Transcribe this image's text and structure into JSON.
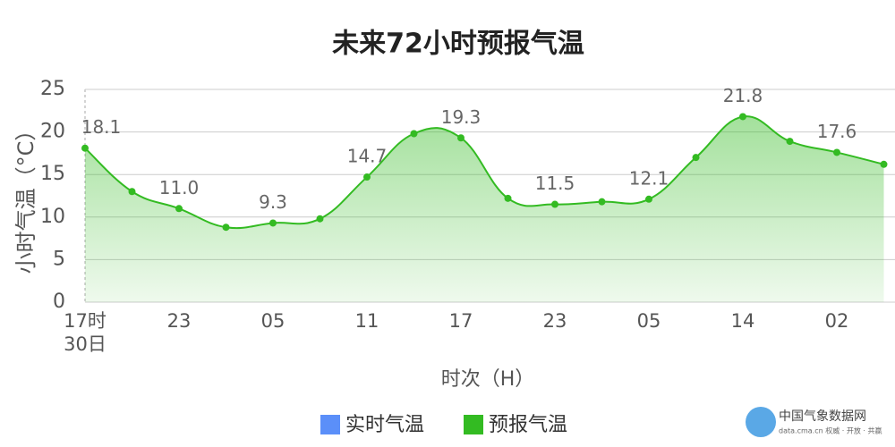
{
  "chart_data": {
    "type": "line",
    "title": "未来72小时预报气温",
    "y_label": "小时气温（°C）",
    "x_label": "时次（H）",
    "categories": [
      "17时\n30日",
      null,
      "23",
      null,
      "05",
      null,
      "11",
      null,
      "17",
      null,
      "23",
      null,
      "05",
      null,
      "14",
      null,
      "02",
      null
    ],
    "series": [
      {
        "name": "预报气温",
        "color": "#33bb22",
        "values": [
          18.1,
          13.0,
          11.0,
          8.8,
          9.3,
          9.8,
          14.7,
          19.8,
          19.3,
          12.2,
          11.5,
          11.8,
          12.1,
          17.0,
          21.8,
          18.9,
          17.6,
          16.2
        ],
        "value_labels": [
          "18.1",
          null,
          "11.0",
          null,
          "9.3",
          null,
          "14.7",
          null,
          "19.3",
          null,
          "11.5",
          null,
          "12.1",
          null,
          "21.8",
          null,
          "17.6",
          null
        ]
      }
    ],
    "legend": [
      {
        "name": "实时气温",
        "color": "#5b8ff9"
      },
      {
        "name": "预报气温",
        "color": "#33bb22"
      }
    ],
    "ylim": [
      0,
      25
    ],
    "yticks": [
      0,
      5,
      10,
      15,
      20,
      25
    ],
    "grid": true,
    "watermark": "中国气象数据网",
    "logo": {
      "name": "中国气象数据网",
      "tagline": "data.cma.cn 权威 · 开放 · 共赢"
    }
  }
}
